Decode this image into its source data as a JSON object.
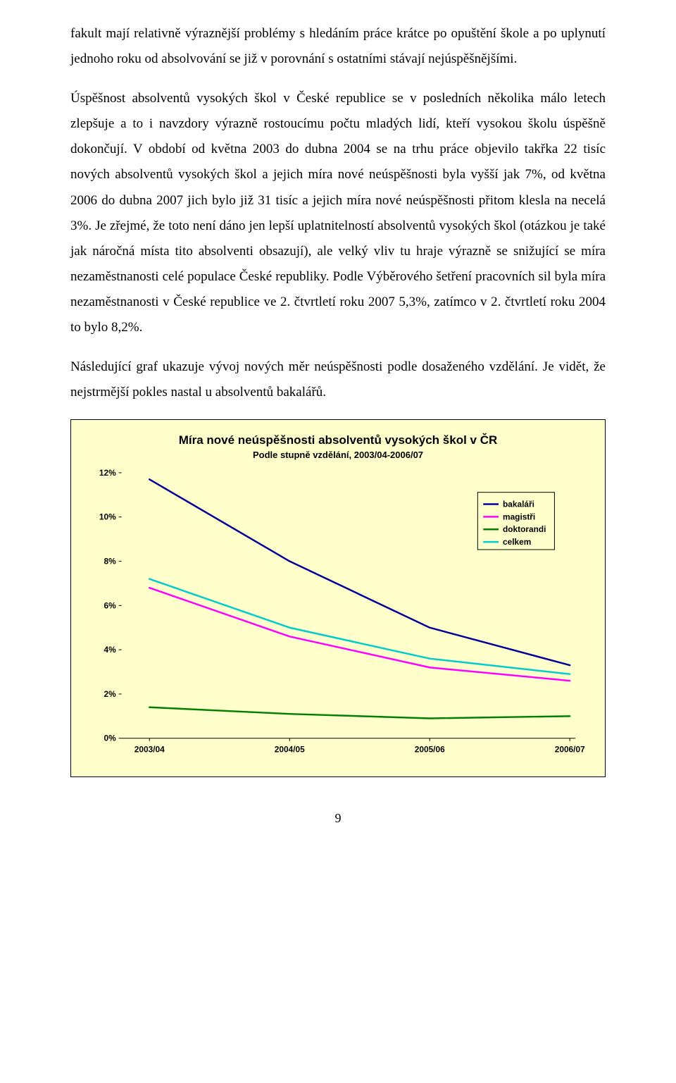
{
  "paragraphs": {
    "p1": "fakult mají relativně výraznější problémy s hledáním práce krátce po opuštění škole a po uplynutí jednoho roku od absolvování se již v porovnání s ostatními stávají nejúspěšnějšími.",
    "p2": "Úspěšnost absolventů vysokých škol v České republice se v posledních několika málo letech zlepšuje a to i navzdory výrazně rostoucímu počtu mladých lidí, kteří vysokou školu úspěšně dokončují. V období od května 2003 do dubna 2004 se na trhu práce objevilo takřka 22 tisíc nových absolventů vysokých škol a jejich míra nové neúspěšnosti byla vyšší jak 7%, od května 2006 do dubna 2007 jich bylo již 31 tisíc a jejich míra nové neúspěšnosti přitom klesla na necelá 3%. Je zřejmé, že toto není dáno jen lepší uplatnitelností absolventů vysokých škol (otázkou je také jak náročná místa tito absolventi obsazují), ale velký vliv tu hraje výrazně se snižující se míra nezaměstnanosti celé populace České republiky. Podle Výběrového šetření pracovních sil byla míra nezaměstnanosti v České republice ve 2. čtvrtletí roku 2007 5,3%, zatímco v 2. čtvrtletí roku 2004 to bylo 8,2%.",
    "p3": "Následující graf ukazuje vývoj nových měr neúspěšnosti podle dosaženého vzdělání. Je vidět, že nejstrmější pokles nastal u absolventů bakalářů."
  },
  "chart": {
    "title": "Míra nové neúspěšnosti absolventů vysokých škol v ČR",
    "subtitle": "Podle stupně vzdělání, 2003/04-2006/07",
    "type": "line",
    "background_color": "#ffffcc",
    "border_color": "#000000",
    "plot_bg": "#ffffcc",
    "grid": false,
    "ylim": [
      0,
      12
    ],
    "ytick_step": 2,
    "ytick_format_suffix": "%",
    "yticks": [
      "0%",
      "2%",
      "4%",
      "6%",
      "8%",
      "10%",
      "12%"
    ],
    "x_categories": [
      "2003/04",
      "2004/05",
      "2005/06",
      "2006/07"
    ],
    "line_width": 2.5,
    "series": [
      {
        "name": "bakaláři",
        "color": "#000099",
        "values": [
          11.7,
          8.0,
          5.0,
          3.3
        ]
      },
      {
        "name": "magistři",
        "color": "#ff00ff",
        "values": [
          6.8,
          4.6,
          3.2,
          2.6
        ]
      },
      {
        "name": "doktorandi",
        "color": "#008000",
        "values": [
          1.4,
          1.1,
          0.9,
          1.0
        ]
      },
      {
        "name": "celkem",
        "color": "#00cccc",
        "values": [
          7.2,
          5.0,
          3.6,
          2.9
        ]
      }
    ],
    "legend": {
      "position": "top-right",
      "background": "#ffffcc",
      "border_color": "#000000",
      "items": [
        "bakaláři",
        "magistři",
        "doktorandi",
        "celkem"
      ]
    },
    "label_font_family": "Arial",
    "label_font_size": 12,
    "label_font_weight": "bold",
    "title_font_size": 17,
    "subtitle_font_size": 13
  },
  "page_number": "9"
}
